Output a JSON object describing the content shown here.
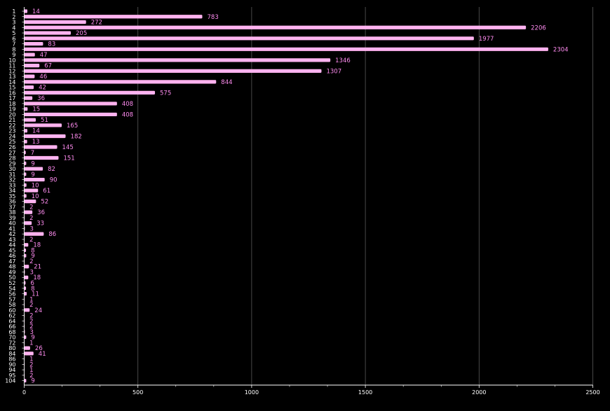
{
  "chart_data": {
    "type": "bar",
    "orientation": "horizontal",
    "title": "",
    "xlabel": "",
    "ylabel": "",
    "categories": [
      "1",
      "2",
      "3",
      "4",
      "5",
      "6",
      "7",
      "8",
      "9",
      "10",
      "11",
      "12",
      "13",
      "14",
      "15",
      "16",
      "17",
      "18",
      "19",
      "20",
      "21",
      "22",
      "23",
      "24",
      "25",
      "26",
      "27",
      "28",
      "29",
      "30",
      "31",
      "32",
      "33",
      "34",
      "35",
      "36",
      "37",
      "38",
      "39",
      "40",
      "41",
      "42",
      "43",
      "44",
      "45",
      "46",
      "47",
      "48",
      "49",
      "50",
      "52",
      "54",
      "56",
      "57",
      "58",
      "60",
      "62",
      "64",
      "66",
      "68",
      "70",
      "72",
      "80",
      "84",
      "86",
      "90",
      "94",
      "95",
      "104"
    ],
    "values": [
      14,
      783,
      272,
      2206,
      205,
      1977,
      83,
      2304,
      47,
      1346,
      67,
      1307,
      46,
      844,
      42,
      575,
      36,
      408,
      15,
      408,
      51,
      165,
      14,
      182,
      13,
      145,
      7,
      151,
      9,
      82,
      9,
      90,
      10,
      61,
      10,
      52,
      2,
      36,
      2,
      33,
      3,
      86,
      2,
      18,
      8,
      9,
      2,
      21,
      3,
      18,
      6,
      8,
      11,
      1,
      2,
      24,
      2,
      2,
      2,
      3,
      9,
      1,
      26,
      41,
      1,
      2,
      1,
      2,
      9
    ],
    "xlim": [
      0,
      2500
    ],
    "xticks": [
      0,
      500,
      1000,
      1500,
      2000,
      2500
    ],
    "grid": "vertical",
    "legend": "none",
    "bar_color": "#ffb3f0",
    "label_color": "#ff8cf0",
    "grid_color": "#5a5a5a",
    "axis_color": "#ffffff"
  }
}
